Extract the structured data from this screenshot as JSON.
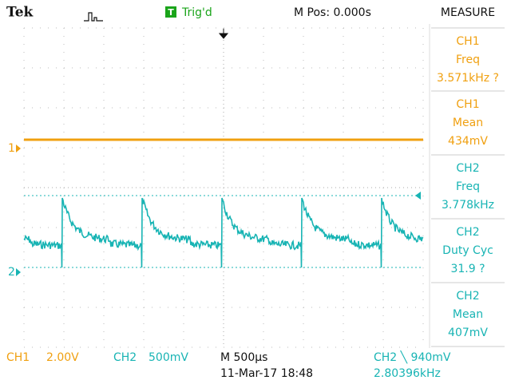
{
  "header": {
    "brand": "Tek",
    "trigger_icon": "T",
    "trigger_status": "Trig'd",
    "position": "M Pos: 0.000s",
    "menu_title": "MEASURE"
  },
  "markers": {
    "ch1": "1",
    "ch2": "2"
  },
  "measurements": [
    {
      "channel": "CH1",
      "label": "Freq",
      "value": "3.571kHz ?"
    },
    {
      "channel": "CH1",
      "label": "Mean",
      "value": "434mV"
    },
    {
      "channel": "CH2",
      "label": "Freq",
      "value": "3.778kHz"
    },
    {
      "channel": "CH2",
      "label": "Duty Cyc",
      "value": "31.9 ?"
    },
    {
      "channel": "CH2",
      "label": "Mean",
      "value": "407mV"
    }
  ],
  "footer": {
    "ch1_label": "CH1",
    "ch1_scale": "2.00V",
    "ch2_label": "CH2",
    "ch2_scale": "500mV",
    "timebase": "M 500µs",
    "datetime": "11-Mar-17 18:48",
    "trigger_source": "CH2 ╲ 940mV",
    "trigger_freq": "2.80396kHz"
  }
}
